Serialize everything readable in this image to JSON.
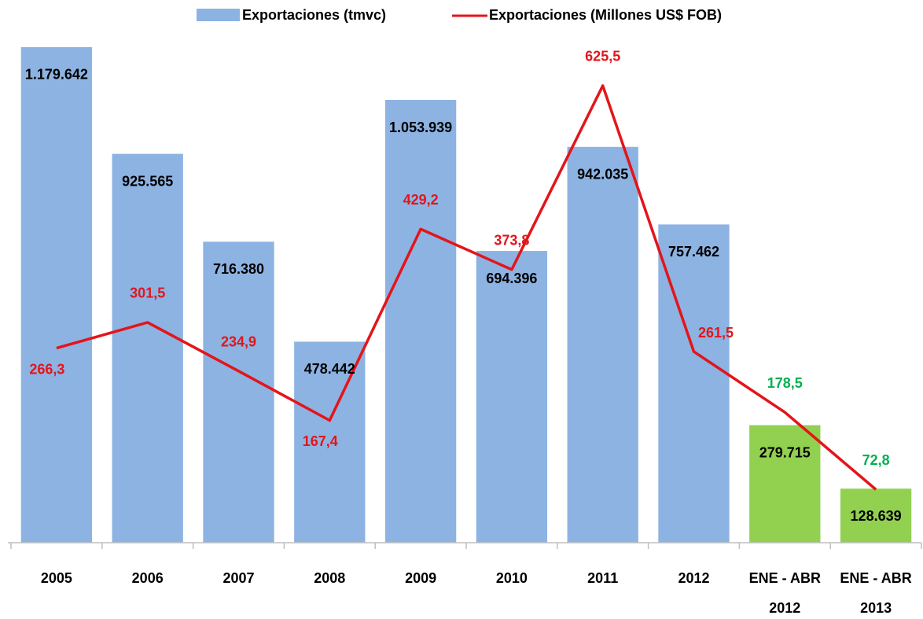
{
  "chart_data": {
    "type": "bar_line",
    "categories": [
      "2005",
      "2006",
      "2007",
      "2008",
      "2009",
      "2010",
      "2011",
      "2012",
      "ENE - ABR 2012",
      "ENE - ABR 2013"
    ],
    "series": [
      {
        "name": "Exportaciones (tmvc)",
        "type": "bar",
        "color": "#8db3e2",
        "colors": [
          "#8db3e2",
          "#8db3e2",
          "#8db3e2",
          "#8db3e2",
          "#8db3e2",
          "#8db3e2",
          "#8db3e2",
          "#8db3e2",
          "#92d050",
          "#92d050"
        ],
        "values": [
          1179642,
          925565,
          716380,
          478442,
          1053939,
          694396,
          942035,
          757462,
          279715,
          128639
        ],
        "value_labels": [
          "1.179.642",
          "925.565",
          "716.380",
          "478.442",
          "1.053.939",
          "694.396",
          "942.035",
          "757.462",
          "279.715",
          "128.639"
        ],
        "label_color": "#000000"
      },
      {
        "name": "Exportaciones (Millones US$ FOB)",
        "type": "line",
        "axis": "y2",
        "color": "#e3151a",
        "values": [
          266.3,
          301.5,
          234.9,
          167.4,
          429.2,
          373.8,
          625.5,
          261.5,
          178.5,
          72.8
        ],
        "value_labels": [
          "266,3",
          "301,5",
          "234,9",
          "167,4",
          "429,2",
          "373,8",
          "625,5",
          "261,5",
          "178,5",
          "72,8"
        ],
        "label_colors": [
          "#e3151a",
          "#e3151a",
          "#e3151a",
          "#e3151a",
          "#e3151a",
          "#e3151a",
          "#e3151a",
          "#e3151a",
          "#00b050",
          "#00b050"
        ],
        "label_positions": [
          "below",
          "above",
          "above",
          "below",
          "above",
          "above",
          "above",
          "right",
          "above",
          "above"
        ]
      }
    ],
    "ylim": [
      0,
      1200000
    ],
    "y2lim": [
      0,
      690
    ],
    "legend": "top"
  }
}
